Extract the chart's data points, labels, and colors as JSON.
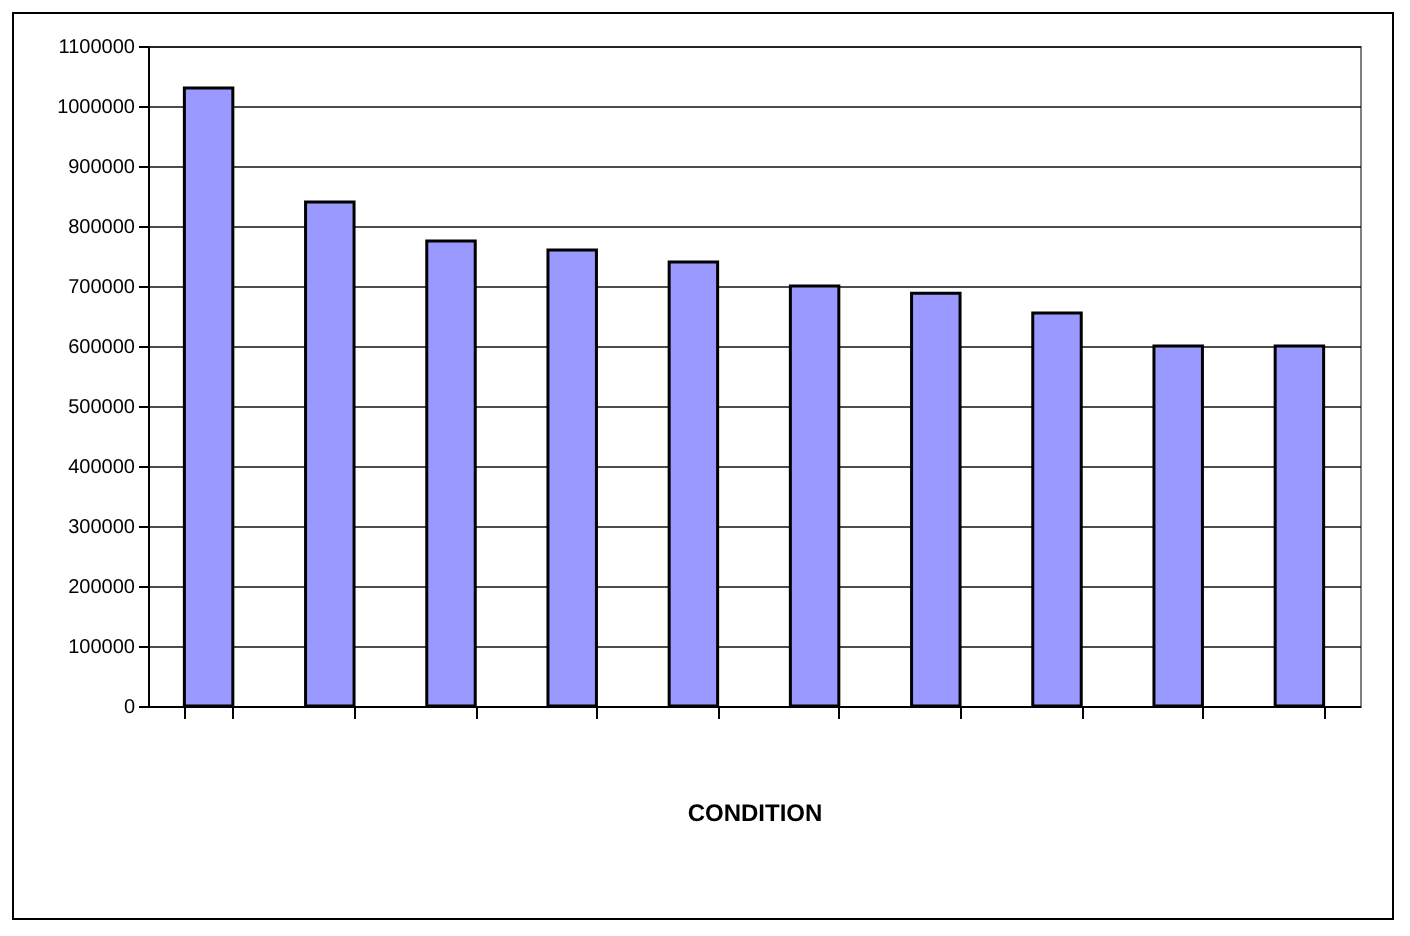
{
  "chart_data": {
    "type": "bar",
    "xlabel": "CONDITION",
    "categories": [
      null,
      null,
      null,
      null,
      null,
      null,
      null,
      null,
      null,
      null
    ],
    "values": [
      1030000,
      840000,
      775000,
      760000,
      740000,
      700000,
      688000,
      655000,
      600000,
      600000
    ],
    "color": "#9999ff",
    "ylim": [
      0,
      1100000
    ],
    "yticks": [
      0,
      100000,
      200000,
      300000,
      400000,
      500000,
      600000,
      700000,
      800000,
      900000,
      1000000,
      1100000
    ],
    "grid": "y"
  }
}
